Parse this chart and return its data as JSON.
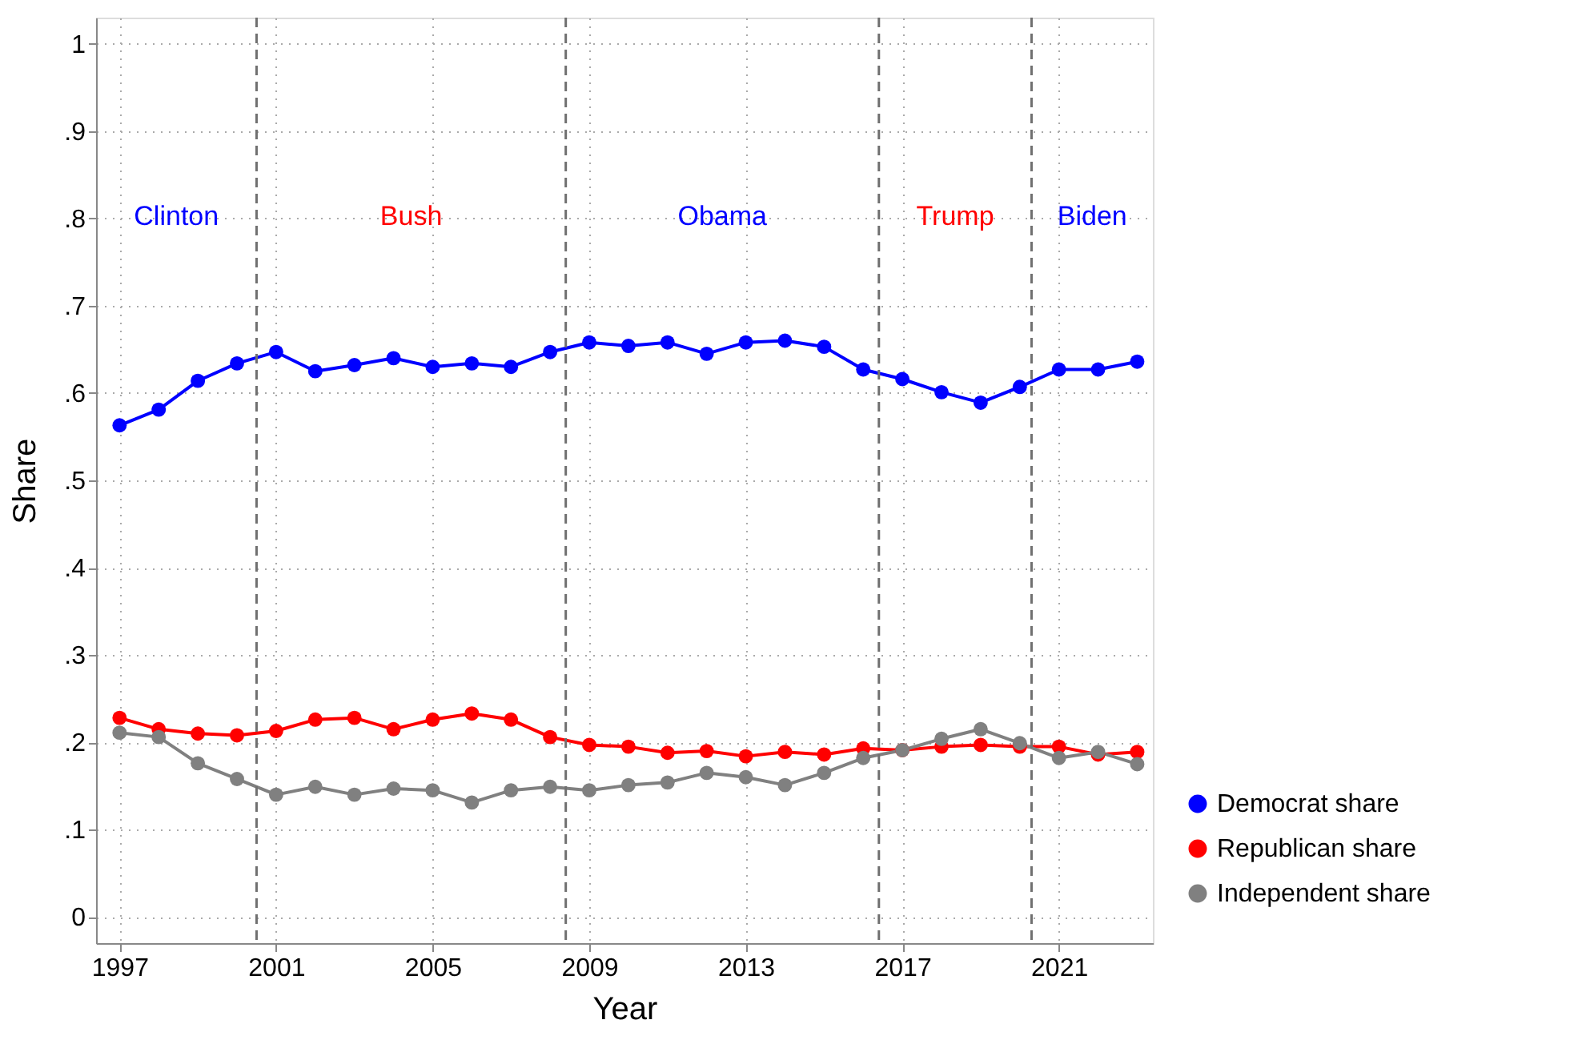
{
  "chart_data": {
    "type": "line",
    "xlabel": "Year",
    "ylabel": "Share",
    "x": [
      1997,
      1998,
      1999,
      2000,
      2001,
      2002,
      2003,
      2004,
      2005,
      2006,
      2007,
      2008,
      2009,
      2010,
      2011,
      2012,
      2013,
      2014,
      2015,
      2016,
      2017,
      2018,
      2019,
      2020,
      2021,
      2022,
      2023
    ],
    "series": [
      {
        "name": "Democrat share",
        "color": "#0000ff",
        "values": [
          0.563,
          0.581,
          0.614,
          0.634,
          0.647,
          0.625,
          0.632,
          0.64,
          0.63,
          0.634,
          0.63,
          0.647,
          0.658,
          0.654,
          0.658,
          0.645,
          0.658,
          0.66,
          0.653,
          0.627,
          0.616,
          0.601,
          0.589,
          0.607,
          0.627,
          0.627,
          0.636
        ]
      },
      {
        "name": "Republican share",
        "color": "#ff0000",
        "values": [
          0.228,
          0.215,
          0.21,
          0.208,
          0.213,
          0.226,
          0.228,
          0.215,
          0.226,
          0.233,
          0.226,
          0.206,
          0.197,
          0.195,
          0.188,
          0.19,
          0.184,
          0.189,
          0.186,
          0.193,
          0.191,
          0.195,
          0.197,
          0.195,
          0.195,
          0.186,
          0.189
        ]
      },
      {
        "name": "Independent share",
        "color": "#808080",
        "values": [
          0.211,
          0.206,
          0.176,
          0.158,
          0.14,
          0.149,
          0.14,
          0.147,
          0.145,
          0.131,
          0.145,
          0.149,
          0.145,
          0.151,
          0.154,
          0.165,
          0.16,
          0.151,
          0.165,
          0.182,
          0.191,
          0.204,
          0.215,
          0.199,
          0.182,
          0.189,
          0.175
        ]
      }
    ],
    "xlim": [
      1996.4,
      2023.4
    ],
    "xticks": [
      1997,
      2001,
      2005,
      2009,
      2013,
      2017,
      2021
    ],
    "ylim": [
      -0.03,
      1.03
    ],
    "yticks": [
      0,
      {
        "value": 0.1,
        "label": ".1"
      },
      {
        "value": 0.2,
        "label": ".2"
      },
      {
        "value": 0.3,
        "label": ".3"
      },
      {
        "value": 0.4,
        "label": ".4"
      },
      {
        "value": 0.5,
        "label": ".5"
      },
      {
        "value": 0.6,
        "label": ".6"
      },
      {
        "value": 0.7,
        "label": ".7"
      },
      {
        "value": 0.8,
        "label": ".8"
      },
      {
        "value": 0.9,
        "label": ".9"
      },
      1
    ],
    "ref_lines": [
      {
        "axis": "x",
        "value": 2000.5,
        "color": "#707070",
        "line_style": "dashed"
      },
      {
        "axis": "x",
        "value": 2008.4,
        "color": "#707070",
        "line_style": "dashed"
      },
      {
        "axis": "x",
        "value": 2016.4,
        "color": "#707070",
        "line_style": "dashed"
      },
      {
        "axis": "x",
        "value": 2020.3,
        "color": "#707070",
        "line_style": "dashed"
      }
    ],
    "annotations": [
      "Clinton",
      "Bush",
      "Obama",
      "Trump",
      "Biden"
    ],
    "grid": true,
    "legend": "bottom right",
    "marker": "circle",
    "line_style": "solid"
  }
}
